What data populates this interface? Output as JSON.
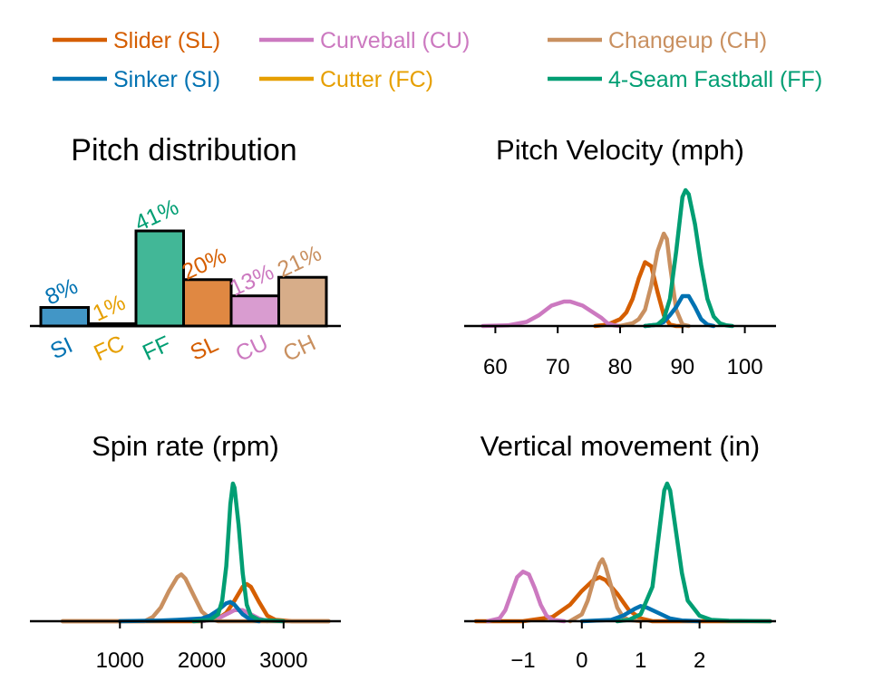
{
  "legend": {
    "placement": "top",
    "entries": [
      {
        "name": "Slider (SL)",
        "color": "#d55e00"
      },
      {
        "name": "Curveball (CU)",
        "color": "#cc79c0"
      },
      {
        "name": "Changeup (CH)",
        "color": "#c99060"
      },
      {
        "name": "Sinker (SI)",
        "color": "#0072b2"
      },
      {
        "name": "Cutter (FC)",
        "color": "#e69f00"
      },
      {
        "name": "4-Seam Fastball (FF)",
        "color": "#009e73"
      }
    ]
  },
  "chart_data": [
    {
      "type": "bar",
      "title": "Pitch distribution",
      "categories": [
        "SI",
        "FC",
        "FF",
        "SL",
        "CU",
        "CH"
      ],
      "values": [
        8,
        1,
        41,
        20,
        13,
        21
      ],
      "value_labels": [
        "8%",
        "1%",
        "41%",
        "20%",
        "13%",
        "21%"
      ],
      "colors": [
        "#0072b2",
        "#e69f00",
        "#009e73",
        "#d55e00",
        "#cc79c0",
        "#c99060"
      ],
      "ylim": [
        0,
        45
      ],
      "grid": false
    },
    {
      "type": "line",
      "title": "Pitch Velocity (mph)",
      "xlim": [
        55,
        105
      ],
      "xticks": [
        "60",
        "70",
        "80",
        "90",
        "100"
      ],
      "xtick_values": [
        60,
        70,
        80,
        90,
        100
      ],
      "grid": false,
      "series": [
        {
          "name": "Slider (SL)",
          "color": "#d55e00",
          "x": [
            76,
            78,
            80,
            81,
            82,
            83,
            84,
            85,
            86,
            87,
            88,
            89,
            90
          ],
          "y": [
            0,
            0.01,
            0.05,
            0.1,
            0.2,
            0.35,
            0.47,
            0.44,
            0.25,
            0.08,
            0.01,
            0,
            0
          ]
        },
        {
          "name": "Curveball (CU)",
          "color": "#cc79c0",
          "x": [
            58,
            62,
            65,
            67,
            69,
            71,
            72,
            74,
            75,
            77,
            78,
            79,
            80
          ],
          "y": [
            0,
            0.005,
            0.03,
            0.08,
            0.15,
            0.18,
            0.18,
            0.15,
            0.12,
            0.06,
            0.02,
            0.005,
            0
          ]
        },
        {
          "name": "Changeup (CH)",
          "color": "#c99060",
          "x": [
            80,
            82,
            83,
            84,
            85,
            86,
            87,
            87.5,
            88,
            89,
            90,
            91
          ],
          "y": [
            0,
            0.02,
            0.05,
            0.12,
            0.3,
            0.55,
            0.68,
            0.64,
            0.45,
            0.12,
            0.01,
            0
          ]
        },
        {
          "name": "Sinker (SI)",
          "color": "#0072b2",
          "x": [
            84,
            86,
            87,
            88,
            89,
            90,
            91,
            92,
            93,
            94,
            95
          ],
          "y": [
            0,
            0.01,
            0.03,
            0.08,
            0.14,
            0.22,
            0.22,
            0.14,
            0.05,
            0.01,
            0
          ]
        },
        {
          "name": "4-Seam Fastball (FF)",
          "color": "#009e73",
          "x": [
            84,
            86,
            87,
            88,
            89,
            90,
            90.5,
            91,
            92,
            93,
            94,
            95,
            96,
            97,
            98
          ],
          "y": [
            0,
            0.01,
            0.05,
            0.2,
            0.55,
            0.95,
            1.0,
            0.97,
            0.75,
            0.45,
            0.2,
            0.07,
            0.02,
            0.005,
            0
          ]
        }
      ]
    },
    {
      "type": "line",
      "title": "Spin rate (rpm)",
      "xlim": [
        -100,
        3700
      ],
      "xticks": [
        "1000",
        "2000",
        "3000"
      ],
      "xtick_values": [
        1000,
        2000,
        3000
      ],
      "grid": false,
      "series": [
        {
          "name": "Slider (SL)",
          "color": "#d55e00",
          "x": [
            300,
            2000,
            2200,
            2300,
            2400,
            2500,
            2550,
            2600,
            2700,
            2800,
            2900,
            3100,
            3550
          ],
          "y": [
            0,
            0,
            0.02,
            0.06,
            0.15,
            0.25,
            0.27,
            0.25,
            0.14,
            0.04,
            0.01,
            0,
            0
          ]
        },
        {
          "name": "Curveball (CU)",
          "color": "#cc79c0",
          "x": [
            2000,
            2200,
            2300,
            2400,
            2500,
            2600,
            2700,
            2800
          ],
          "y": [
            0,
            0.02,
            0.05,
            0.08,
            0.08,
            0.05,
            0.02,
            0
          ]
        },
        {
          "name": "Changeup (CH)",
          "color": "#c99060",
          "x": [
            300,
            1300,
            1400,
            1500,
            1600,
            1700,
            1750,
            1800,
            1900,
            2000,
            2100,
            2200,
            3550
          ],
          "y": [
            0,
            0,
            0.03,
            0.1,
            0.22,
            0.32,
            0.34,
            0.31,
            0.19,
            0.07,
            0.02,
            0,
            0
          ]
        },
        {
          "name": "Sinker (SI)",
          "color": "#0072b2",
          "x": [
            1000,
            1500,
            1700,
            2000,
            2100,
            2200,
            2300,
            2350,
            2400,
            2500,
            2600,
            2700
          ],
          "y": [
            0,
            0.005,
            0.01,
            0.02,
            0.04,
            0.08,
            0.13,
            0.14,
            0.12,
            0.05,
            0.01,
            0
          ]
        },
        {
          "name": "4-Seam Fastball (FF)",
          "color": "#009e73",
          "x": [
            1900,
            2100,
            2200,
            2250,
            2300,
            2350,
            2380,
            2400,
            2450,
            2500,
            2550,
            2600,
            2700,
            3000
          ],
          "y": [
            0,
            0.01,
            0.05,
            0.15,
            0.4,
            0.85,
            1.0,
            0.97,
            0.7,
            0.35,
            0.12,
            0.04,
            0.01,
            0
          ]
        }
      ]
    },
    {
      "type": "line",
      "title": "Vertical movement (in)",
      "xlim": [
        -2,
        3.3
      ],
      "xticks": [
        "−1",
        "0",
        "1",
        "2"
      ],
      "xtick_values": [
        -1,
        0,
        1,
        2
      ],
      "grid": false,
      "series": [
        {
          "name": "Slider (SL)",
          "color": "#d55e00",
          "x": [
            -1.8,
            -1,
            -0.5,
            -0.2,
            0,
            0.2,
            0.3,
            0.4,
            0.6,
            0.8,
            1,
            1.2,
            3.2
          ],
          "y": [
            0,
            0,
            0.03,
            0.12,
            0.22,
            0.3,
            0.32,
            0.3,
            0.2,
            0.08,
            0.02,
            0,
            0
          ]
        },
        {
          "name": "Curveball (CU)",
          "color": "#cc79c0",
          "x": [
            -1.6,
            -1.4,
            -1.3,
            -1.2,
            -1.1,
            -1,
            -0.9,
            -0.8,
            -0.7,
            -0.6,
            -0.5,
            -0.3
          ],
          "y": [
            0,
            0.02,
            0.08,
            0.2,
            0.32,
            0.36,
            0.34,
            0.24,
            0.12,
            0.04,
            0.01,
            0
          ]
        },
        {
          "name": "Changeup (CH)",
          "color": "#c99060",
          "x": [
            -0.2,
            0,
            0.1,
            0.2,
            0.3,
            0.35,
            0.4,
            0.5,
            0.6,
            0.7,
            0.8,
            1
          ],
          "y": [
            0,
            0.05,
            0.15,
            0.3,
            0.42,
            0.45,
            0.4,
            0.25,
            0.1,
            0.03,
            0.01,
            0
          ]
        },
        {
          "name": "Sinker (SI)",
          "color": "#0072b2",
          "x": [
            0,
            0.5,
            0.7,
            0.9,
            1,
            1.1,
            1.3,
            1.5,
            1.7,
            2
          ],
          "y": [
            0,
            0.01,
            0.04,
            0.09,
            0.11,
            0.1,
            0.06,
            0.02,
            0.005,
            0
          ]
        },
        {
          "name": "4-Seam Fastball (FF)",
          "color": "#009e73",
          "x": [
            0.6,
            0.8,
            1,
            1.2,
            1.3,
            1.4,
            1.45,
            1.5,
            1.6,
            1.7,
            1.8,
            2,
            2.2,
            2.5,
            3.2
          ],
          "y": [
            0,
            0.01,
            0.05,
            0.25,
            0.6,
            0.95,
            1.0,
            0.95,
            0.65,
            0.35,
            0.15,
            0.04,
            0.01,
            0.003,
            0
          ]
        }
      ]
    }
  ]
}
